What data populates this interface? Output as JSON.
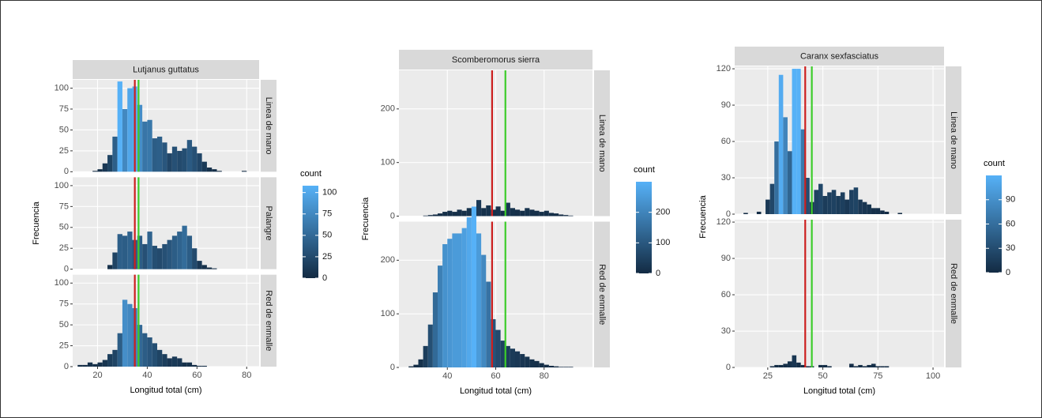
{
  "chart_data": [
    {
      "type": "histogram",
      "title": "Lutjanus guttatus",
      "xlabel": "Longitud total (cm)",
      "ylabel": "Frecuencia",
      "xlim": [
        10,
        85
      ],
      "xticks": [
        20,
        40,
        60,
        80
      ],
      "ylim": [
        0,
        110
      ],
      "yticks": [
        0,
        25,
        50,
        75,
        100
      ],
      "bins": [
        12,
        14,
        16,
        18,
        20,
        22,
        24,
        26,
        28,
        30,
        32,
        34,
        36,
        38,
        40,
        42,
        44,
        46,
        48,
        50,
        52,
        54,
        56,
        58,
        60,
        62,
        64,
        66,
        68,
        70,
        72,
        74,
        76,
        78,
        80,
        82
      ],
      "series": [
        {
          "name": "Linea de mano",
          "values": [
            0,
            0,
            0,
            1,
            3,
            10,
            20,
            42,
            108,
            75,
            100,
            102,
            80,
            60,
            62,
            40,
            42,
            35,
            22,
            30,
            25,
            28,
            38,
            30,
            22,
            12,
            5,
            3,
            1,
            0,
            0,
            0,
            0,
            1,
            0
          ]
        },
        {
          "name": "Palangre",
          "values": [
            0,
            0,
            0,
            0,
            0,
            0,
            5,
            20,
            42,
            40,
            45,
            35,
            40,
            30,
            45,
            28,
            25,
            30,
            35,
            40,
            45,
            52,
            40,
            25,
            10,
            5,
            2,
            1,
            0,
            0,
            0,
            0,
            0,
            0,
            0
          ]
        },
        {
          "name": "Red de enmalle",
          "values": [
            2,
            2,
            5,
            3,
            5,
            8,
            15,
            20,
            40,
            80,
            75,
            70,
            50,
            40,
            35,
            28,
            20,
            15,
            10,
            12,
            10,
            5,
            5,
            2,
            1,
            1,
            0,
            0,
            0,
            0,
            0,
            0,
            0,
            0,
            0
          ]
        }
      ],
      "vlines": [
        {
          "value": 35,
          "color": "#cc1f1f"
        },
        {
          "value": 36.5,
          "color": "#3ccc2a"
        }
      ],
      "legend": {
        "title": "count",
        "lim": [
          0,
          108
        ],
        "ticks": [
          0,
          25,
          50,
          75,
          100
        ],
        "low_color": "#132b43",
        "high_color": "#56b1f7"
      }
    },
    {
      "type": "histogram",
      "title": "Scomberomorus sierra",
      "xlabel": "Longitud total (cm)",
      "ylabel": "Frecuencia",
      "xlim": [
        20,
        100
      ],
      "xticks": [
        40,
        60,
        80
      ],
      "ylim": [
        0,
        272
      ],
      "yticks": [
        0,
        100,
        200
      ],
      "bins": [
        24,
        26,
        28,
        30,
        32,
        34,
        36,
        38,
        40,
        42,
        44,
        46,
        48,
        50,
        52,
        54,
        56,
        58,
        60,
        62,
        64,
        66,
        68,
        70,
        72,
        74,
        76,
        78,
        80,
        82,
        84,
        86,
        88,
        90,
        92,
        94,
        96,
        98
      ],
      "series": [
        {
          "name": "Linea de mano",
          "values": [
            0,
            0,
            0,
            1,
            2,
            3,
            5,
            8,
            10,
            8,
            12,
            10,
            15,
            12,
            30,
            15,
            20,
            12,
            18,
            10,
            25,
            15,
            12,
            10,
            15,
            12,
            10,
            8,
            10,
            6,
            5,
            3,
            2,
            1,
            0,
            0,
            0
          ]
        },
        {
          "name": "Red de enmalle",
          "values": [
            2,
            5,
            15,
            40,
            80,
            140,
            190,
            230,
            240,
            250,
            250,
            260,
            280,
            300,
            250,
            210,
            160,
            90,
            70,
            50,
            40,
            35,
            30,
            25,
            20,
            15,
            12,
            8,
            5,
            3,
            2,
            1,
            1,
            1,
            0,
            0,
            0
          ]
        }
      ],
      "vlines": [
        {
          "value": 58.5,
          "color": "#cc1f1f"
        },
        {
          "value": 64,
          "color": "#3ccc2a"
        }
      ],
      "legend": {
        "title": "count",
        "lim": [
          0,
          300
        ],
        "ticks": [
          0,
          100,
          200
        ],
        "low_color": "#132b43",
        "high_color": "#56b1f7"
      }
    },
    {
      "type": "histogram",
      "title": "Caranx sexfasciatus",
      "xlabel": "Longitud total (cm)",
      "ylabel": "Frecuencia",
      "xlim": [
        10,
        105
      ],
      "xticks": [
        25,
        50,
        75,
        100
      ],
      "ylim": [
        0,
        122
      ],
      "yticks": [
        0,
        30,
        60,
        90,
        120
      ],
      "bins": [
        14,
        16,
        18,
        20,
        22,
        24,
        26,
        28,
        30,
        32,
        34,
        36,
        38,
        40,
        42,
        44,
        46,
        48,
        50,
        52,
        54,
        56,
        58,
        60,
        62,
        64,
        66,
        68,
        70,
        72,
        74,
        76,
        78,
        80,
        82,
        84,
        86,
        88,
        90,
        92,
        94,
        96,
        98,
        100
      ],
      "series": [
        {
          "name": "Linea de mano",
          "values": [
            1,
            0,
            0,
            2,
            0,
            12,
            25,
            60,
            115,
            80,
            52,
            120,
            120,
            70,
            30,
            10,
            20,
            25,
            15,
            18,
            20,
            15,
            18,
            12,
            20,
            22,
            12,
            10,
            8,
            5,
            5,
            3,
            2,
            0,
            0,
            1,
            0,
            0,
            0,
            0,
            0,
            0,
            0
          ]
        },
        {
          "name": "Red de enmalle",
          "values": [
            0,
            0,
            0,
            0,
            0,
            0,
            1,
            2,
            2,
            3,
            5,
            10,
            4,
            2,
            1,
            1,
            0,
            2,
            2,
            1,
            0,
            0,
            0,
            0,
            3,
            1,
            2,
            1,
            2,
            3,
            1,
            1,
            1,
            0,
            0,
            0,
            0,
            0,
            0,
            0,
            0,
            0,
            0
          ]
        }
      ],
      "vlines": [
        {
          "value": 42,
          "color": "#cc1f1f"
        },
        {
          "value": 45,
          "color": "#3ccc2a"
        }
      ],
      "legend": {
        "title": "count",
        "lim": [
          0,
          120
        ],
        "ticks": [
          0,
          30,
          60,
          90
        ],
        "low_color": "#132b43",
        "high_color": "#56b1f7"
      }
    }
  ]
}
